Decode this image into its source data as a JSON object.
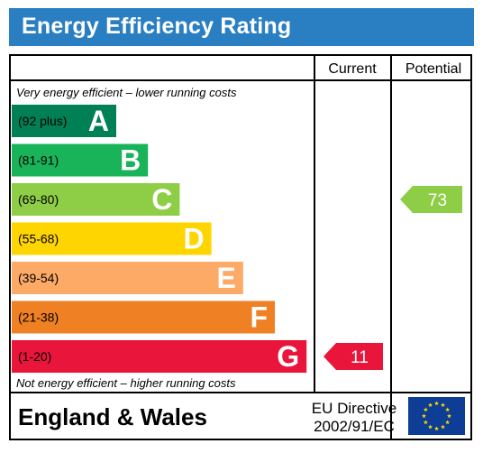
{
  "header": {
    "title": "Energy Efficiency Rating"
  },
  "columns": {
    "current": "Current",
    "potential": "Potential"
  },
  "notes": {
    "top": "Very energy efficient – lower running costs",
    "bottom": "Not energy efficient – higher running costs"
  },
  "footer": {
    "region": "England & Wales",
    "directive_line1": "EU Directive",
    "directive_line2": "2002/91/EC"
  },
  "colors": {
    "header": "#2a7fc3",
    "A": "#008054",
    "B": "#19b459",
    "C": "#8dce46",
    "D": "#ffd500",
    "E": "#fcaa65",
    "F": "#ef8023",
    "G": "#e9153b",
    "eu_flag": "#0e3d96",
    "eu_star": "#ffdd00"
  },
  "chart_data": {
    "type": "bar",
    "title": "Energy Efficiency Rating",
    "categories": [
      "A",
      "B",
      "C",
      "D",
      "E",
      "F",
      "G"
    ],
    "ranges": [
      "(92 plus)",
      "(81-91)",
      "(69-80)",
      "(55-68)",
      "(39-54)",
      "(21-38)",
      "(1-20)"
    ],
    "bands": [
      {
        "letter": "A",
        "range": "(92 plus)",
        "color": "#008054"
      },
      {
        "letter": "B",
        "range": "(81-91)",
        "color": "#19b459"
      },
      {
        "letter": "C",
        "range": "(69-80)",
        "color": "#8dce46"
      },
      {
        "letter": "D",
        "range": "(55-68)",
        "color": "#ffd500"
      },
      {
        "letter": "E",
        "range": "(39-54)",
        "color": "#fcaa65"
      },
      {
        "letter": "F",
        "range": "(21-38)",
        "color": "#ef8023"
      },
      {
        "letter": "G",
        "range": "(1-20)",
        "color": "#e9153b"
      }
    ],
    "current": {
      "value": 11,
      "band": "G"
    },
    "potential": {
      "value": 73,
      "band": "C"
    }
  }
}
